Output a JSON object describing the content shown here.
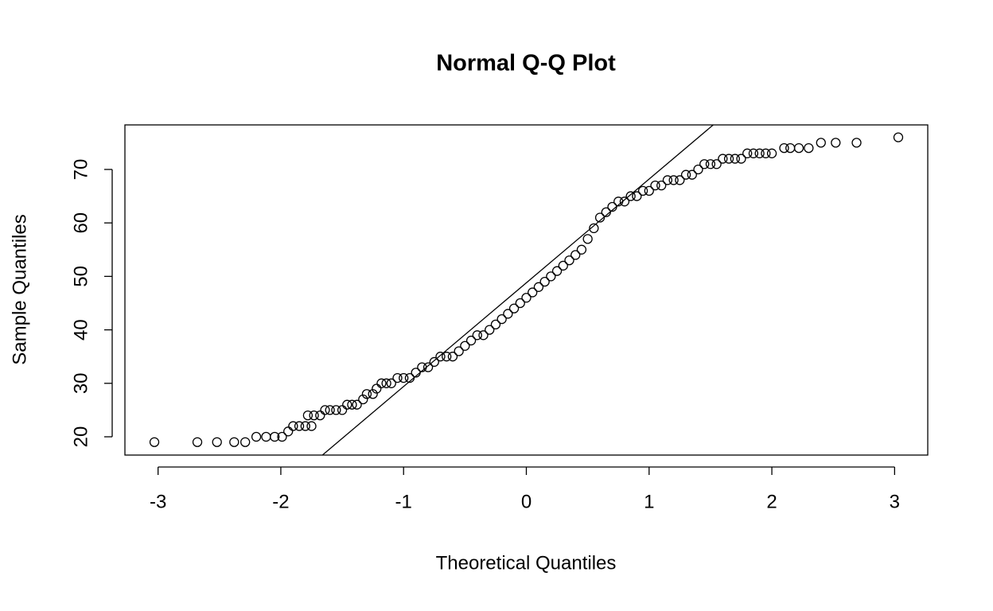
{
  "chart_data": {
    "type": "scatter",
    "title": "Normal Q-Q Plot",
    "x_label": "Theoretical Quantiles",
    "y_label": "Sample Quantiles",
    "xlim": [
      -3.27,
      3.27
    ],
    "ylim": [
      16.58,
      78.33
    ],
    "xticks": [
      -3,
      -2,
      -1,
      0,
      1,
      2,
      3
    ],
    "yticks": [
      20,
      30,
      40,
      50,
      60,
      70
    ],
    "color": "#000000",
    "reference_line": {
      "intercept": 48.8,
      "slope": 19.4
    },
    "x": [
      -3.03,
      -2.68,
      -2.52,
      -2.38,
      -2.29,
      -2.2,
      -2.12,
      -2.05,
      -1.99,
      -1.94,
      -1.9,
      -1.85,
      -1.8,
      -1.75,
      -1.78,
      -1.73,
      -1.68,
      -1.64,
      -1.6,
      -1.55,
      -1.5,
      -1.46,
      -1.42,
      -1.38,
      -1.33,
      -1.3,
      -1.25,
      -1.22,
      -1.18,
      -1.14,
      -1.1,
      -1.05,
      -1.0,
      -0.95,
      -0.9,
      -0.85,
      -0.8,
      -0.75,
      -0.7,
      -0.65,
      -0.6,
      -0.55,
      -0.5,
      -0.45,
      -0.4,
      -0.35,
      -0.3,
      -0.25,
      -0.2,
      -0.15,
      -0.1,
      -0.05,
      0,
      0.05,
      0.1,
      0.15,
      0.2,
      0.25,
      0.3,
      0.35,
      0.4,
      0.45,
      0.5,
      0.55,
      0.6,
      0.65,
      0.7,
      0.75,
      0.8,
      0.85,
      0.9,
      0.95,
      1.0,
      1.05,
      1.1,
      1.15,
      1.2,
      1.25,
      1.3,
      1.35,
      1.4,
      1.45,
      1.5,
      1.55,
      1.6,
      1.65,
      1.7,
      1.75,
      1.8,
      1.85,
      1.9,
      1.95,
      2.0,
      2.1,
      2.15,
      2.22,
      2.3,
      2.4,
      2.52,
      2.69,
      3.03
    ],
    "values": [
      19,
      19,
      19,
      19,
      19,
      20,
      20,
      20,
      20,
      21,
      22,
      22,
      22,
      22,
      24,
      24,
      24,
      25,
      25,
      25,
      25,
      26,
      26,
      26,
      27,
      28,
      28,
      29,
      30,
      30,
      30,
      31,
      31,
      31,
      32,
      33,
      33,
      34,
      35,
      35,
      35,
      36,
      37,
      38,
      39,
      39,
      40,
      41,
      42,
      43,
      44,
      45,
      46,
      47,
      48,
      49,
      50,
      51,
      52,
      53,
      54,
      55,
      57,
      59,
      61,
      62,
      63,
      64,
      64,
      65,
      65,
      66,
      66,
      67,
      67,
      68,
      68,
      68,
      69,
      69,
      70,
      71,
      71,
      71,
      72,
      72,
      72,
      72,
      73,
      73,
      73,
      73,
      73,
      74,
      74,
      74,
      74,
      75,
      75,
      75,
      76
    ]
  }
}
